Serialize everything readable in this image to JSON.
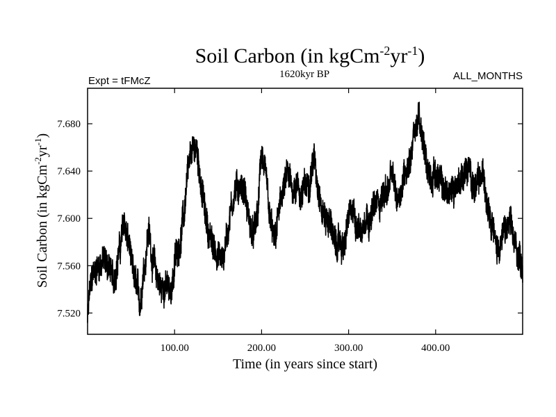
{
  "chart_data": {
    "type": "line",
    "title_main": "Soil Carbon (in kgCm",
    "title_sup1": "-2",
    "title_mid": "yr",
    "title_sup2": "-1",
    "title_end": ")",
    "subtitle_left": "Expt = tFMcZ",
    "subtitle_center": "1620kyr BP",
    "subtitle_right": "ALL_MONTHS",
    "xlabel": "Time (in years since start)",
    "ylabel_main": "Soil Carbon (in kgCm",
    "ylabel_sup1": "-2",
    "ylabel_mid": "yr",
    "ylabel_sup2": "-1",
    "ylabel_end": ")",
    "xlim": [
      0,
      500
    ],
    "ylim": [
      7.502,
      7.71
    ],
    "x_ticks": [
      100,
      200,
      300,
      400
    ],
    "x_tick_labels": [
      "100.00",
      "200.00",
      "300.00",
      "400.00"
    ],
    "y_ticks": [
      7.52,
      7.56,
      7.6,
      7.64,
      7.68
    ],
    "y_tick_labels": [
      "7.520",
      "7.560",
      "7.600",
      "7.640",
      "7.680"
    ],
    "series": [
      {
        "name": "Soil Carbon",
        "color": "#000000",
        "anchors_x": [
          0,
          3,
          7,
          12,
          18,
          25,
          30,
          33,
          37,
          42,
          47,
          52,
          57,
          60,
          65,
          70,
          75,
          80,
          85,
          90,
          95,
          98,
          102,
          106,
          110,
          115,
          120,
          125,
          128,
          132,
          136,
          140,
          145,
          150,
          155,
          160,
          165,
          170,
          175,
          180,
          185,
          190,
          195,
          200,
          205,
          210,
          215,
          220,
          225,
          230,
          235,
          240,
          245,
          250,
          255,
          260,
          265,
          270,
          275,
          280,
          285,
          290,
          295,
          300,
          305,
          310,
          315,
          320,
          325,
          330,
          335,
          340,
          345,
          350,
          355,
          360,
          365,
          370,
          375,
          380,
          385,
          390,
          395,
          400,
          405,
          410,
          415,
          420,
          425,
          430,
          435,
          440,
          445,
          450,
          455,
          460,
          465,
          470,
          475,
          480,
          485,
          490,
          495,
          500
        ],
        "anchors_y": [
          7.515,
          7.54,
          7.553,
          7.56,
          7.565,
          7.56,
          7.545,
          7.56,
          7.575,
          7.595,
          7.58,
          7.553,
          7.54,
          7.528,
          7.56,
          7.59,
          7.565,
          7.55,
          7.54,
          7.545,
          7.535,
          7.55,
          7.57,
          7.58,
          7.6,
          7.635,
          7.655,
          7.66,
          7.645,
          7.62,
          7.6,
          7.585,
          7.575,
          7.57,
          7.565,
          7.585,
          7.61,
          7.625,
          7.628,
          7.625,
          7.6,
          7.585,
          7.6,
          7.655,
          7.63,
          7.595,
          7.58,
          7.605,
          7.625,
          7.635,
          7.625,
          7.63,
          7.62,
          7.625,
          7.635,
          7.65,
          7.63,
          7.605,
          7.6,
          7.595,
          7.575,
          7.58,
          7.575,
          7.6,
          7.605,
          7.595,
          7.59,
          7.605,
          7.6,
          7.61,
          7.615,
          7.62,
          7.625,
          7.635,
          7.618,
          7.625,
          7.64,
          7.65,
          7.67,
          7.685,
          7.665,
          7.645,
          7.635,
          7.64,
          7.63,
          7.625,
          7.62,
          7.625,
          7.63,
          7.635,
          7.64,
          7.638,
          7.625,
          7.63,
          7.635,
          7.615,
          7.6,
          7.575,
          7.58,
          7.59,
          7.595,
          7.58,
          7.57,
          7.56
        ]
      }
    ]
  }
}
